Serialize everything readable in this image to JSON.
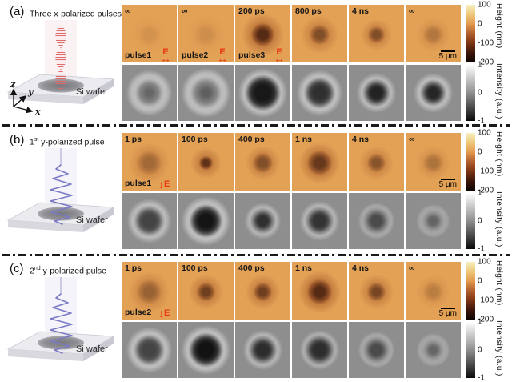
{
  "figure": {
    "colors": {
      "background": "#ffffff",
      "height_map_bg": "#e3a156",
      "intensity_map_bg": "#8e8e8e",
      "e_field_accent": "#e63914",
      "height_colorbar_stops": [
        "#f8f0c0",
        "#eec87a",
        "#e39a4e",
        "#b05e2c",
        "#7c3413",
        "#3c150a",
        "#0e0502"
      ],
      "intensity_colorbar_stops": [
        "#ffffff",
        "#8e8e8e",
        "#0a0a0a"
      ]
    },
    "colorbars": {
      "height": {
        "label": "Height (nm)",
        "ticks": [
          "100",
          "0",
          "-100",
          "-200"
        ]
      },
      "intensity": {
        "label": "Intensity (a.u.)",
        "ticks": [
          "1",
          "0",
          "-1"
        ]
      }
    },
    "scalebar_label": "5 μm",
    "e_field_label": "E",
    "e_arrow_h_glyph": "↔",
    "e_arrow_v_glyph": "↕",
    "panels": [
      {
        "label": "(a)",
        "title": {
          "pre": "Three ",
          "sup": "",
          "rest": "x-polarized pulses"
        },
        "wafer_label": "Si wafer",
        "pulse_type": "x-polarized-bursts",
        "axes": {
          "z": "z",
          "y": "y",
          "x": "x"
        },
        "top_cells": [
          {
            "time": "∞",
            "pulse": "pulse1",
            "e": "h",
            "spot": {
              "alpha": 0.1,
              "radius": 14,
              "halo": 24
            }
          },
          {
            "time": "∞",
            "pulse": "pulse2",
            "e": "h",
            "spot": {
              "alpha": 0.13,
              "radius": 15,
              "halo": 25
            }
          },
          {
            "time": "200 ps",
            "pulse": "pulse3",
            "e": "h",
            "spot": {
              "alpha": 0.85,
              "radius": 15,
              "halo": 27
            }
          },
          {
            "time": "800 ps",
            "pulse": "",
            "e": "",
            "spot": {
              "alpha": 0.6,
              "radius": 13,
              "halo": 24
            }
          },
          {
            "time": "4 ns",
            "pulse": "",
            "e": "",
            "spot": {
              "alpha": 0.6,
              "radius": 11,
              "halo": 20
            }
          },
          {
            "time": "∞",
            "pulse": "",
            "e": "",
            "spot": {
              "alpha": 0.3,
              "radius": 13,
              "halo": 22
            }
          }
        ],
        "bottom_cells": [
          {
            "crater": {
              "ring_radius": 21,
              "core_alpha": 0.3,
              "core_radius": 6
            }
          },
          {
            "crater": {
              "ring_radius": 23,
              "core_alpha": 0.35,
              "core_radius": 7
            }
          },
          {
            "crater": {
              "ring_radius": 23,
              "core_alpha": 0.88,
              "core_radius": 15
            }
          },
          {
            "crater": {
              "ring_radius": 21,
              "core_alpha": 0.7,
              "core_radius": 12
            }
          },
          {
            "crater": {
              "ring_radius": 17,
              "core_alpha": 0.8,
              "core_radius": 10
            }
          },
          {
            "crater": {
              "ring_radius": 17,
              "core_alpha": 0.78,
              "core_radius": 9
            }
          }
        ]
      },
      {
        "label": "(b)",
        "title": {
          "pre": "1",
          "sup": "st",
          "rest": " y-polarized pulse"
        },
        "wafer_label": "Si wafer",
        "pulse_type": "y-polarized-helix",
        "top_cells": [
          {
            "time": "1 ps",
            "pulse": "pulse1",
            "e": "v",
            "spot": {
              "alpha": 0.4,
              "radius": 16,
              "halo": 26
            }
          },
          {
            "time": "100 ps",
            "pulse": "",
            "e": "",
            "spot": {
              "alpha": 0.8,
              "radius": 9,
              "halo": 20
            }
          },
          {
            "time": "400 ps",
            "pulse": "",
            "e": "",
            "spot": {
              "alpha": 0.6,
              "radius": 13,
              "halo": 22
            }
          },
          {
            "time": "1 ns",
            "pulse": "",
            "e": "",
            "spot": {
              "alpha": 0.75,
              "radius": 16,
              "halo": 26
            }
          },
          {
            "time": "4 ns",
            "pulse": "",
            "e": "",
            "spot": {
              "alpha": 0.55,
              "radius": 12,
              "halo": 22
            }
          },
          {
            "time": "∞",
            "pulse": "",
            "e": "",
            "spot": {
              "alpha": 0.33,
              "radius": 13,
              "halo": 22
            }
          }
        ],
        "bottom_cells": [
          {
            "crater": {
              "ring_radius": 20,
              "core_alpha": 0.55,
              "core_radius": 12
            }
          },
          {
            "crater": {
              "ring_radius": 23,
              "core_alpha": 0.9,
              "core_radius": 13
            }
          },
          {
            "crater": {
              "ring_radius": 15,
              "core_alpha": 0.7,
              "core_radius": 9
            }
          },
          {
            "crater": {
              "ring_radius": 17,
              "core_alpha": 0.68,
              "core_radius": 11
            }
          },
          {
            "crater": {
              "ring_radius": 15,
              "core_alpha": 0.5,
              "core_radius": 11
            }
          },
          {
            "crater": {
              "ring_radius": 13,
              "core_alpha": 0.32,
              "core_radius": 10
            }
          }
        ]
      },
      {
        "label": "(c)",
        "title": {
          "pre": "2",
          "sup": "nd",
          "rest": " y-polarized pulse"
        },
        "wafer_label": "Si wafer",
        "pulse_type": "y-polarized-helix",
        "top_cells": [
          {
            "time": "1 ps",
            "pulse": "pulse2",
            "e": "v",
            "spot": {
              "alpha": 0.45,
              "radius": 16,
              "halo": 26
            }
          },
          {
            "time": "100 ps",
            "pulse": "",
            "e": "",
            "spot": {
              "alpha": 0.7,
              "radius": 12,
              "halo": 22
            }
          },
          {
            "time": "400 ps",
            "pulse": "",
            "e": "",
            "spot": {
              "alpha": 0.7,
              "radius": 12,
              "halo": 22
            }
          },
          {
            "time": "1 ns",
            "pulse": "",
            "e": "",
            "spot": {
              "alpha": 0.85,
              "radius": 16,
              "halo": 27
            }
          },
          {
            "time": "4 ns",
            "pulse": "",
            "e": "",
            "spot": {
              "alpha": 0.65,
              "radius": 12,
              "halo": 22
            }
          },
          {
            "time": "∞",
            "pulse": "",
            "e": "",
            "spot": {
              "alpha": 0.25,
              "radius": 13,
              "halo": 22
            }
          }
        ],
        "bottom_cells": [
          {
            "crater": {
              "ring_radius": 21,
              "core_alpha": 0.55,
              "core_radius": 12
            }
          },
          {
            "crater": {
              "ring_radius": 23,
              "core_alpha": 0.92,
              "core_radius": 14
            }
          },
          {
            "crater": {
              "ring_radius": 17,
              "core_alpha": 0.72,
              "core_radius": 11
            }
          },
          {
            "crater": {
              "ring_radius": 17,
              "core_alpha": 0.72,
              "core_radius": 12
            }
          },
          {
            "crater": {
              "ring_radius": 15,
              "core_alpha": 0.5,
              "core_radius": 11
            }
          },
          {
            "crater": {
              "ring_radius": 13,
              "core_alpha": 0.3,
              "core_radius": 10
            }
          }
        ]
      }
    ]
  }
}
